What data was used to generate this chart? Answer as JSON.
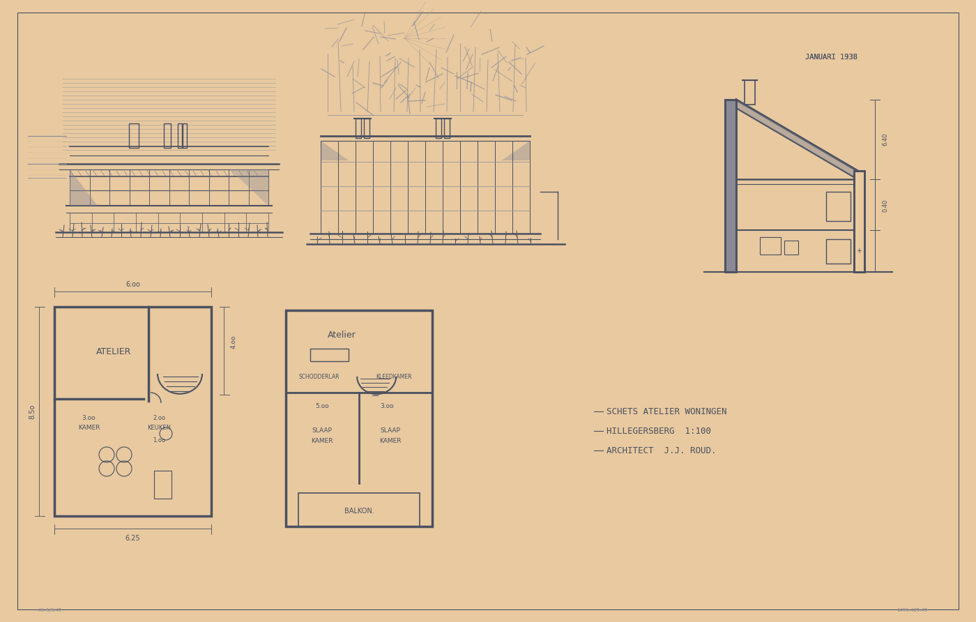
{
  "paper_color": "#e8c9a0",
  "line_color": "#4a5060",
  "light_line_color": "#8a8a96",
  "very_light": "#b0a090",
  "title_text1": "SCHETS ATELIER WONINGEN",
  "title_text2": "HILLEGERSBERG  1:100",
  "title_text3": "ARCHITECT  J.J. ROUD.",
  "date_text": "JANUARI 1938",
  "figsize": [
    14.0,
    8.92
  ],
  "dpi": 100
}
